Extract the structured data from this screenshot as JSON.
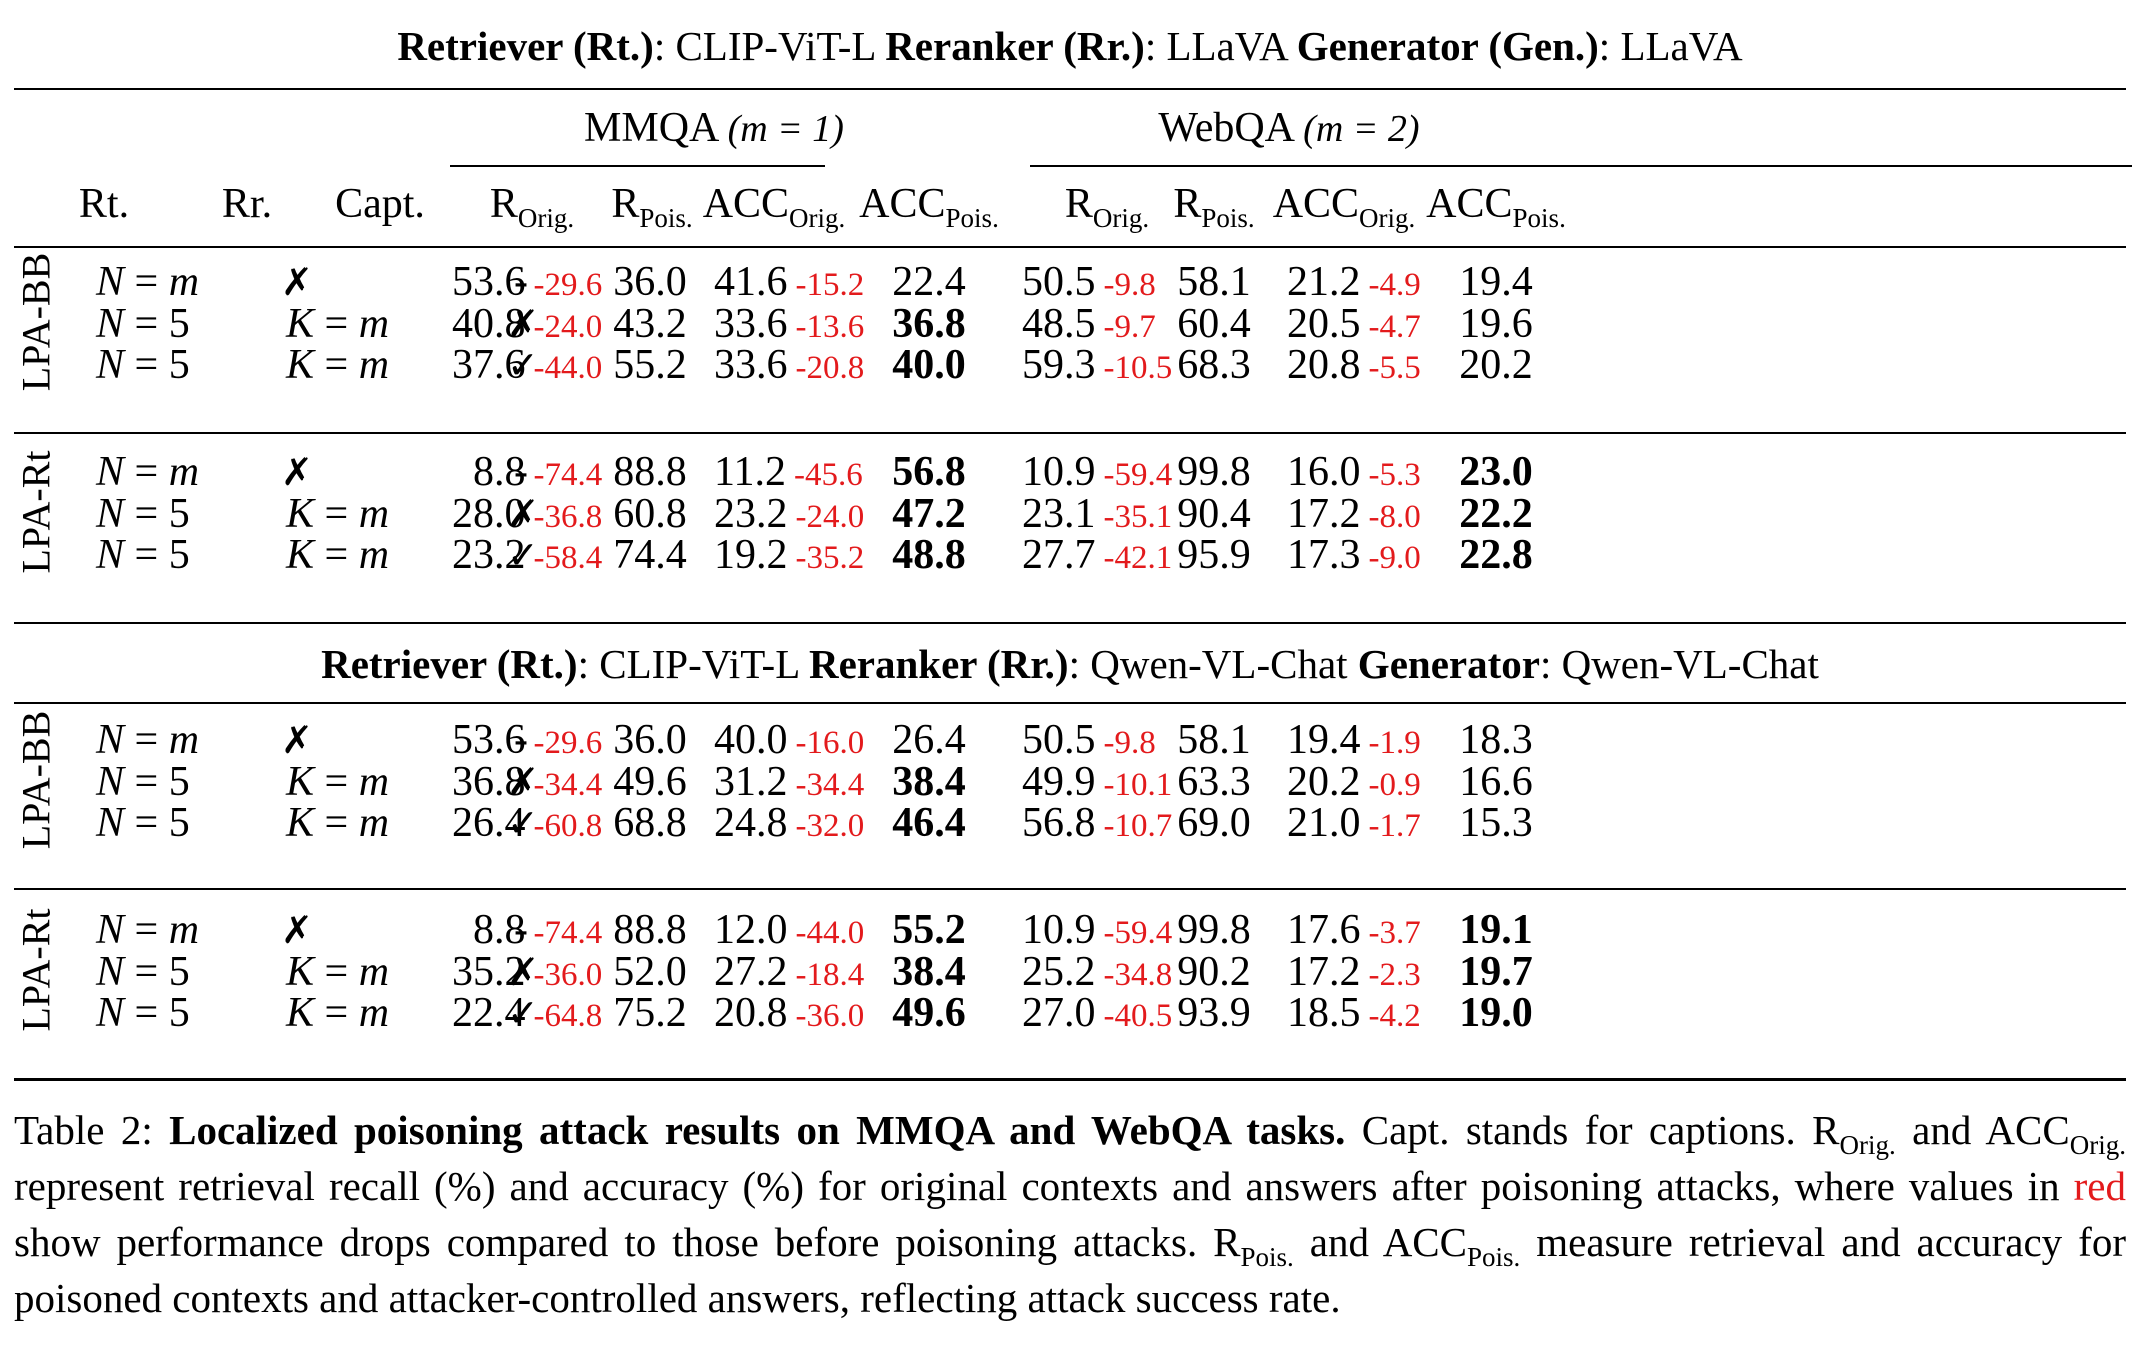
{
  "sections": [
    {
      "title": {
        "rt_label": "Retriever (Rt.)",
        "rt_value": ": CLIP-ViT-L ",
        "rr_label": "Reranker (Rr.)",
        "rr_value": ": LLaVA ",
        "gen_label": "Generator (Gen.)",
        "gen_value": ": LLaVA"
      },
      "groups": [
        {
          "label": "LPA-BB",
          "rows": [
            {
              "rt": "N = m",
              "rr": "✗",
              "capt": "-",
              "mm": [
                [
                  "53.6",
                  "-29.6",
                  false
                ],
                [
                  "36.0",
                  "",
                  false
                ],
                [
                  "41.6",
                  "-15.2",
                  false
                ],
                [
                  "22.4",
                  "",
                  false
                ]
              ],
              "wq": [
                [
                  "50.5",
                  "-9.8",
                  false
                ],
                [
                  "58.1",
                  "",
                  false
                ],
                [
                  "21.2",
                  "-4.9",
                  false
                ],
                [
                  "19.4",
                  "",
                  false
                ]
              ]
            },
            {
              "rt": "N = 5",
              "rr": "K = m",
              "capt": "✗",
              "mm": [
                [
                  "40.8",
                  "-24.0",
                  false
                ],
                [
                  "43.2",
                  "",
                  false
                ],
                [
                  "33.6",
                  "-13.6",
                  false
                ],
                [
                  "36.8",
                  "",
                  true
                ]
              ],
              "wq": [
                [
                  "48.5",
                  "-9.7",
                  false
                ],
                [
                  "60.4",
                  "",
                  false
                ],
                [
                  "20.5",
                  "-4.7",
                  false
                ],
                [
                  "19.6",
                  "",
                  false
                ]
              ]
            },
            {
              "rt": "N = 5",
              "rr": "K = m",
              "capt": "✓",
              "mm": [
                [
                  "37.6",
                  "-44.0",
                  false
                ],
                [
                  "55.2",
                  "",
                  false
                ],
                [
                  "33.6",
                  "-20.8",
                  false
                ],
                [
                  "40.0",
                  "",
                  true
                ]
              ],
              "wq": [
                [
                  "59.3",
                  "-10.5",
                  false
                ],
                [
                  "68.3",
                  "",
                  false
                ],
                [
                  "20.8",
                  "-5.5",
                  false
                ],
                [
                  "20.2",
                  "",
                  false
                ]
              ]
            }
          ]
        },
        {
          "label": "LPA-Rt",
          "rows": [
            {
              "rt": "N = m",
              "rr": "✗",
              "capt": "-",
              "mm": [
                [
                  "8.8",
                  "-74.4",
                  false
                ],
                [
                  "88.8",
                  "",
                  false
                ],
                [
                  "11.2",
                  "-45.6",
                  false
                ],
                [
                  "56.8",
                  "",
                  true
                ]
              ],
              "wq": [
                [
                  "10.9",
                  "-59.4",
                  false
                ],
                [
                  "99.8",
                  "",
                  false
                ],
                [
                  "16.0",
                  "-5.3",
                  false
                ],
                [
                  "23.0",
                  "",
                  true
                ]
              ]
            },
            {
              "rt": "N = 5",
              "rr": "K = m",
              "capt": "✗",
              "mm": [
                [
                  "28.0",
                  "-36.8",
                  false
                ],
                [
                  "60.8",
                  "",
                  false
                ],
                [
                  "23.2",
                  "-24.0",
                  false
                ],
                [
                  "47.2",
                  "",
                  true
                ]
              ],
              "wq": [
                [
                  "23.1",
                  "-35.1",
                  false
                ],
                [
                  "90.4",
                  "",
                  false
                ],
                [
                  "17.2",
                  "-8.0",
                  false
                ],
                [
                  "22.2",
                  "",
                  true
                ]
              ]
            },
            {
              "rt": "N = 5",
              "rr": "K = m",
              "capt": "✓",
              "mm": [
                [
                  "23.2",
                  "-58.4",
                  false
                ],
                [
                  "74.4",
                  "",
                  false
                ],
                [
                  "19.2",
                  "-35.2",
                  false
                ],
                [
                  "48.8",
                  "",
                  true
                ]
              ],
              "wq": [
                [
                  "27.7",
                  "-42.1",
                  false
                ],
                [
                  "95.9",
                  "",
                  false
                ],
                [
                  "17.3",
                  "-9.0",
                  false
                ],
                [
                  "22.8",
                  "",
                  true
                ]
              ]
            }
          ]
        }
      ]
    },
    {
      "title": {
        "rt_label": "Retriever (Rt.)",
        "rt_value": ": CLIP-ViT-L ",
        "rr_label": "Reranker (Rr.)",
        "rr_value": ": Qwen-VL-Chat ",
        "gen_label": "Generator",
        "gen_value": ": Qwen-VL-Chat"
      },
      "groups": [
        {
          "label": "LPA-BB",
          "rows": [
            {
              "rt": "N = m",
              "rr": "✗",
              "capt": "-",
              "mm": [
                [
                  "53.6",
                  "-29.6",
                  false
                ],
                [
                  "36.0",
                  "",
                  false
                ],
                [
                  "40.0",
                  "-16.0",
                  false
                ],
                [
                  "26.4",
                  "",
                  false
                ]
              ],
              "wq": [
                [
                  "50.5",
                  "-9.8",
                  false
                ],
                [
                  "58.1",
                  "",
                  false
                ],
                [
                  "19.4",
                  "-1.9",
                  false
                ],
                [
                  "18.3",
                  "",
                  false
                ]
              ]
            },
            {
              "rt": "N = 5",
              "rr": "K = m",
              "capt": "✗",
              "mm": [
                [
                  "36.8",
                  "-34.4",
                  false
                ],
                [
                  "49.6",
                  "",
                  false
                ],
                [
                  "31.2",
                  "-34.4",
                  false
                ],
                [
                  "38.4",
                  "",
                  true
                ]
              ],
              "wq": [
                [
                  "49.9",
                  "-10.1",
                  false
                ],
                [
                  "63.3",
                  "",
                  false
                ],
                [
                  "20.2",
                  "-0.9",
                  false
                ],
                [
                  "16.6",
                  "",
                  false
                ]
              ]
            },
            {
              "rt": "N = 5",
              "rr": "K = m",
              "capt": "✓",
              "mm": [
                [
                  "26.4",
                  "-60.8",
                  false
                ],
                [
                  "68.8",
                  "",
                  false
                ],
                [
                  "24.8",
                  "-32.0",
                  false
                ],
                [
                  "46.4",
                  "",
                  true
                ]
              ],
              "wq": [
                [
                  "56.8",
                  "-10.7",
                  false
                ],
                [
                  "69.0",
                  "",
                  false
                ],
                [
                  "21.0",
                  "-1.7",
                  false
                ],
                [
                  "15.3",
                  "",
                  false
                ]
              ]
            }
          ]
        },
        {
          "label": "LPA-Rt",
          "rows": [
            {
              "rt": "N = m",
              "rr": "✗",
              "capt": "-",
              "mm": [
                [
                  "8.8",
                  "-74.4",
                  false
                ],
                [
                  "88.8",
                  "",
                  false
                ],
                [
                  "12.0",
                  "-44.0",
                  false
                ],
                [
                  "55.2",
                  "",
                  true
                ]
              ],
              "wq": [
                [
                  "10.9",
                  "-59.4",
                  false
                ],
                [
                  "99.8",
                  "",
                  false
                ],
                [
                  "17.6",
                  "-3.7",
                  false
                ],
                [
                  "19.1",
                  "",
                  true
                ]
              ]
            },
            {
              "rt": "N = 5",
              "rr": "K = m",
              "capt": "✗",
              "mm": [
                [
                  "35.2",
                  "-36.0",
                  false
                ],
                [
                  "52.0",
                  "",
                  false
                ],
                [
                  "27.2",
                  "-18.4",
                  false
                ],
                [
                  "38.4",
                  "",
                  true
                ]
              ],
              "wq": [
                [
                  "25.2",
                  "-34.8",
                  false
                ],
                [
                  "90.2",
                  "",
                  false
                ],
                [
                  "17.2",
                  "-2.3",
                  false
                ],
                [
                  "19.7",
                  "",
                  true
                ]
              ]
            },
            {
              "rt": "N = 5",
              "rr": "K = m",
              "capt": "✓",
              "mm": [
                [
                  "22.4",
                  "-64.8",
                  false
                ],
                [
                  "75.2",
                  "",
                  false
                ],
                [
                  "20.8",
                  "-36.0",
                  false
                ],
                [
                  "49.6",
                  "",
                  true
                ]
              ],
              "wq": [
                [
                  "27.0",
                  "-40.5",
                  false
                ],
                [
                  "93.9",
                  "",
                  false
                ],
                [
                  "18.5",
                  "-4.2",
                  false
                ],
                [
                  "19.0",
                  "",
                  true
                ]
              ]
            }
          ]
        }
      ]
    }
  ],
  "header": {
    "mmqa": "MMQA",
    "mmqa_m": "(m = 1)",
    "webqa": "WebQA",
    "webqa_m": "(m = 2)",
    "rt": "Rt.",
    "rr": "Rr.",
    "capt": "Capt.",
    "r": "R",
    "acc": "ACC",
    "orig": "Orig.",
    "pois": "Pois."
  },
  "caption": {
    "table_no": "Table 2: ",
    "bold_title": "Localized poisoning attack results on MMQA and WebQA tasks.",
    "t1": " Capt. stands for captions. R",
    "sub_orig": "Orig.",
    "t2": " and ACC",
    "t3": " represent retrieval recall (%) and accuracy (%) for original contexts and answers after poisoning attacks, where values in ",
    "red_word": "red",
    "t4": " show performance drops compared to those before poisoning attacks. R",
    "sub_pois": "Pois.",
    "t5": " and ACC",
    "t6": " measure retrieval and accuracy for poisoned contexts and attacker-controlled answers, reflecting attack success rate."
  }
}
